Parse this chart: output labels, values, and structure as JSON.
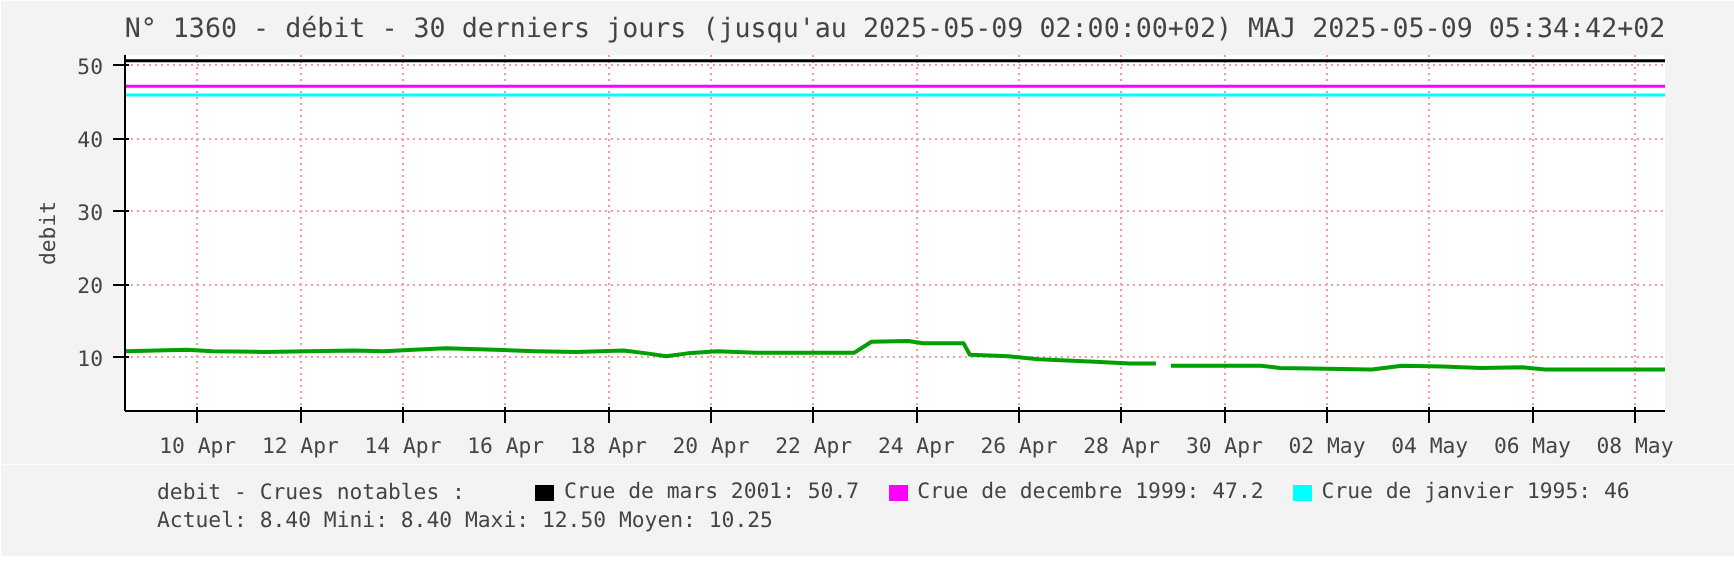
{
  "chart_data": {
    "type": "line",
    "title": "N° 1360 - débit - 30 derniers jours (jusqu'au 2025-05-09 02:00:00+02) MAJ 2025-05-09 05:34:42+02",
    "ylabel": "debit",
    "legend_title": "debit - Crues notables :",
    "annotations": [
      "Actuel: 8.40    Mini: 8.40    Maxi: 12.50    Moyen: 10.25"
    ],
    "xlim": [
      "2025-04-09T02:00",
      "2025-05-09T02:00"
    ],
    "xticks": [
      {
        "value": "2025-04-10T12:00",
        "label": "10 Apr"
      },
      {
        "value": "2025-04-12T12:00",
        "label": "12 Apr"
      },
      {
        "value": "2025-04-14T12:00",
        "label": "14 Apr"
      },
      {
        "value": "2025-04-16T12:00",
        "label": "16 Apr"
      },
      {
        "value": "2025-04-18T12:00",
        "label": "18 Apr"
      },
      {
        "value": "2025-04-20T12:00",
        "label": "20 Apr"
      },
      {
        "value": "2025-04-22T12:00",
        "label": "22 Apr"
      },
      {
        "value": "2025-04-24T12:00",
        "label": "24 Apr"
      },
      {
        "value": "2025-04-26T12:00",
        "label": "26 Apr"
      },
      {
        "value": "2025-04-28T12:00",
        "label": "28 Apr"
      },
      {
        "value": "2025-04-30T12:00",
        "label": "30 Apr"
      },
      {
        "value": "2025-05-02T12:00",
        "label": "02 May"
      },
      {
        "value": "2025-05-04T12:00",
        "label": "04 May"
      },
      {
        "value": "2025-05-06T12:00",
        "label": "06 May"
      },
      {
        "value": "2025-05-08T12:00",
        "label": "08 May"
      }
    ],
    "ylim": [
      2.7,
      51.5
    ],
    "yticks": [
      10,
      20,
      30,
      40,
      50
    ],
    "grid": true,
    "legend": "bottom",
    "x": [
      "2025-04-09T02:00",
      "2025-04-10T07:00",
      "2025-04-10T19:00",
      "2025-04-11T19:00",
      "2025-04-13T13:00",
      "2025-04-14T03:00",
      "2025-04-14T17:00",
      "2025-04-15T08:00",
      "2025-04-16T07:00",
      "2025-04-17T02:00",
      "2025-04-17T21:00",
      "2025-04-18T19:00",
      "2025-04-19T06:00",
      "2025-04-19T15:00",
      "2025-04-20T01:00",
      "2025-04-20T15:00",
      "2025-04-21T09:00",
      "2025-04-23T07:00",
      "2025-04-23T15:00",
      "2025-04-24T08:00",
      "2025-04-24T15:00",
      "2025-04-25T10:00",
      "2025-04-25T13:00",
      "2025-04-26T07:00",
      "2025-04-26T21:00",
      "2025-04-27T21:00",
      "2025-04-28T16:00",
      "2025-04-29T04:00",
      "2025-04-29T08:00",
      "2025-04-29T11:00",
      "2025-05-01T05:00",
      "2025-05-01T14:00",
      "2025-05-03T09:00",
      "2025-05-03T23:00",
      "2025-05-04T18:00",
      "2025-05-05T12:00",
      "2025-05-06T07:00",
      "2025-05-06T18:00",
      "2025-05-09T02:00"
    ],
    "series": [
      {
        "color": "#00a000",
        "values": [
          10.9,
          11.1,
          10.9,
          10.8,
          11.0,
          10.9,
          11.1,
          11.3,
          11.1,
          10.9,
          10.8,
          11.0,
          10.6,
          10.2,
          10.6,
          10.9,
          10.7,
          10.7,
          12.2,
          12.3,
          12.0,
          12.0,
          10.4,
          10.2,
          9.8,
          9.5,
          9.2,
          9.2,
          null,
          8.9,
          8.9,
          8.6,
          8.4,
          8.9,
          8.8,
          8.6,
          8.7,
          8.4,
          8.4
        ]
      }
    ],
    "ref_lines": [
      {
        "axis": "y",
        "value": 50.7,
        "label": "Crue de mars 2001: 50.7",
        "color": "#000000"
      },
      {
        "axis": "y",
        "value": 47.2,
        "label": "Crue de decembre 1999: 47.2",
        "color": "#ff00ff"
      },
      {
        "axis": "y",
        "value": 46,
        "label": "Crue de janvier 1995: 46",
        "color": "#00ffff"
      }
    ]
  }
}
